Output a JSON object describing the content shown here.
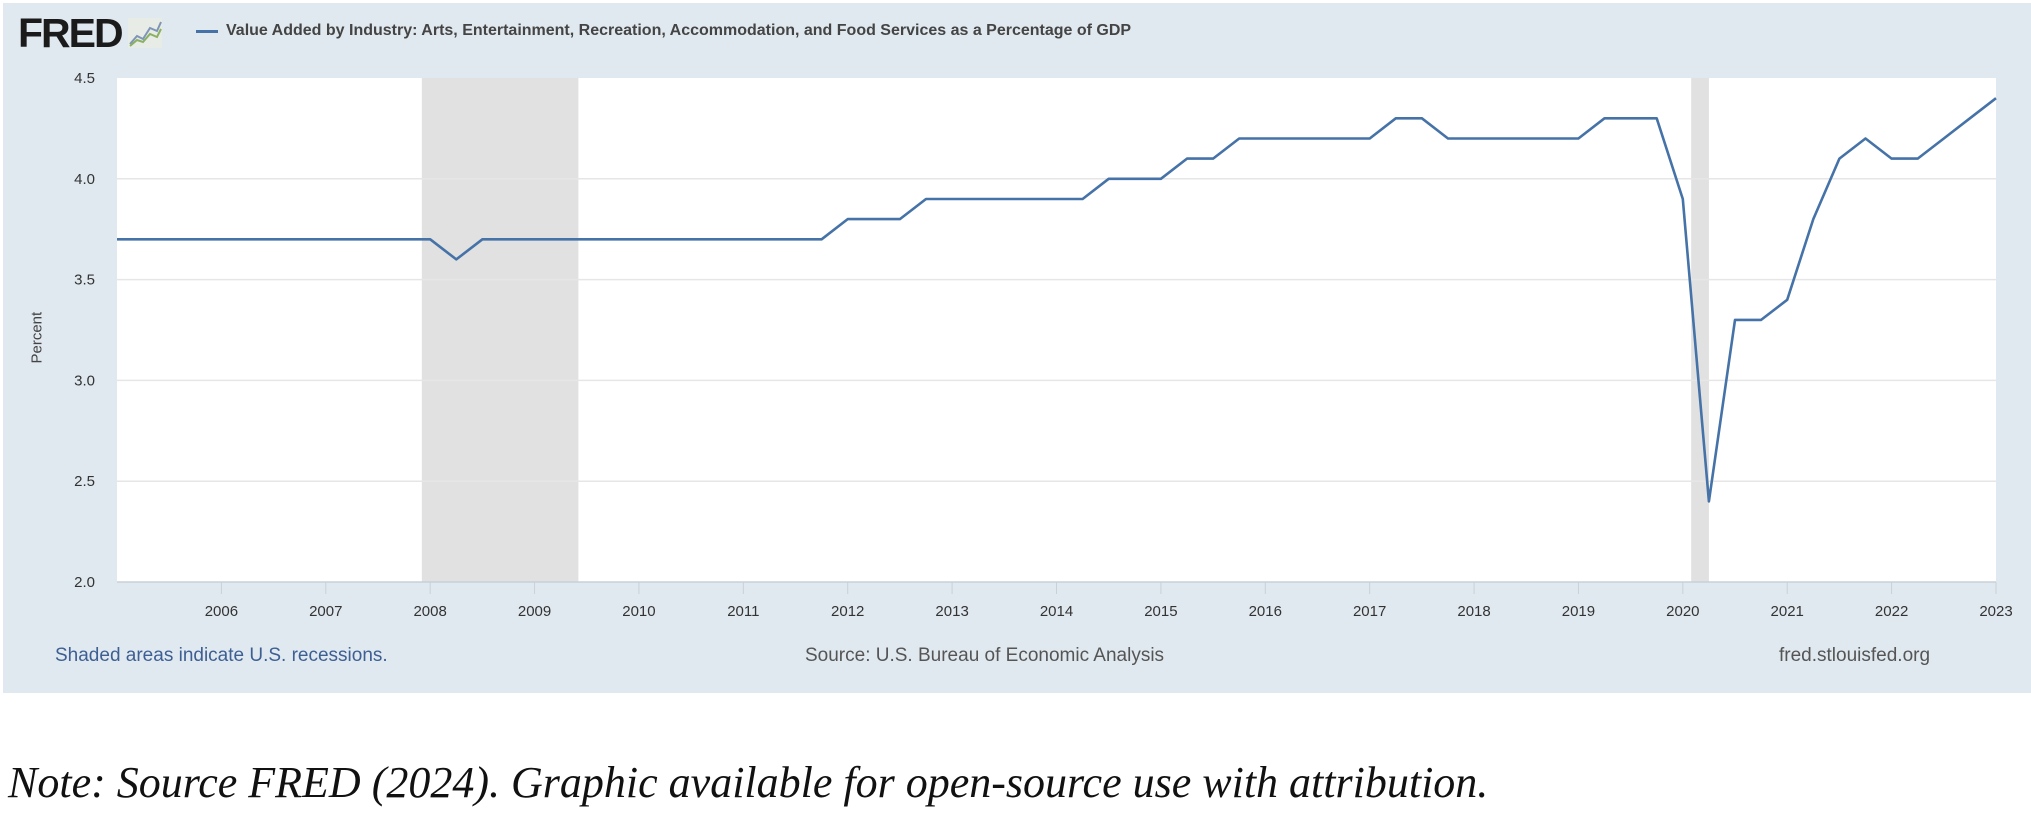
{
  "header": {
    "logo_text": "FRED",
    "logo_icon": "line-chart-icon",
    "series_title": "Value Added by Industry: Arts, Entertainment, Recreation, Accommodation, and Food Services as a Percentage of GDP"
  },
  "footer": {
    "recession_note": "Shaded areas indicate U.S. recessions.",
    "source": "Source: U.S. Bureau of Economic Analysis",
    "site": "fred.stlouisfed.org"
  },
  "caption": "Note: Source FRED (2024). Graphic available for open-source use with attribution.",
  "colors": {
    "line": "#4572a7",
    "panel_bg": "#e1e9f0",
    "recession": "#e1e1e1",
    "grid": "#e6e6e6"
  },
  "chart_data": {
    "type": "line",
    "title": "Value Added by Industry: Arts, Entertainment, Recreation, Accommodation, and Food Services as a Percentage of GDP",
    "xlabel": "",
    "ylabel": "Percent",
    "frequency": "quarterly",
    "xlim": [
      2005.0,
      2023.0
    ],
    "ylim": [
      2.0,
      4.5
    ],
    "y_ticks": [
      2.0,
      2.5,
      3.0,
      3.5,
      4.0,
      4.5
    ],
    "y_tick_labels": [
      "2.0",
      "2.5",
      "3.0",
      "3.5",
      "4.0",
      "4.5"
    ],
    "x_ticks": [
      2006,
      2007,
      2008,
      2009,
      2010,
      2011,
      2012,
      2013,
      2014,
      2015,
      2016,
      2017,
      2018,
      2019,
      2020,
      2021,
      2022,
      2023
    ],
    "x_tick_labels": [
      "2006",
      "2007",
      "2008",
      "2009",
      "2010",
      "2011",
      "2012",
      "2013",
      "2014",
      "2015",
      "2016",
      "2017",
      "2018",
      "2019",
      "2020",
      "2021",
      "2022",
      "2023"
    ],
    "grid": true,
    "legend": "top-left",
    "recessions": [
      {
        "start": 2007.92,
        "end": 2009.42
      },
      {
        "start": 2020.08,
        "end": 2020.25
      }
    ],
    "series": [
      {
        "name": "Value Added by Industry: Arts, Entertainment, Recreation, Accommodation, and Food Services as a Percentage of GDP",
        "x": [
          2005.0,
          2005.25,
          2005.5,
          2005.75,
          2006.0,
          2006.25,
          2006.5,
          2006.75,
          2007.0,
          2007.25,
          2007.5,
          2007.75,
          2008.0,
          2008.25,
          2008.5,
          2008.75,
          2009.0,
          2009.25,
          2009.5,
          2009.75,
          2010.0,
          2010.25,
          2010.5,
          2010.75,
          2011.0,
          2011.25,
          2011.5,
          2011.75,
          2012.0,
          2012.25,
          2012.5,
          2012.75,
          2013.0,
          2013.25,
          2013.5,
          2013.75,
          2014.0,
          2014.25,
          2014.5,
          2014.75,
          2015.0,
          2015.25,
          2015.5,
          2015.75,
          2016.0,
          2016.25,
          2016.5,
          2016.75,
          2017.0,
          2017.25,
          2017.5,
          2017.75,
          2018.0,
          2018.25,
          2018.5,
          2018.75,
          2019.0,
          2019.25,
          2019.5,
          2019.75,
          2020.0,
          2020.25,
          2020.5,
          2020.75,
          2021.0,
          2021.25,
          2021.5,
          2021.75,
          2022.0,
          2022.25,
          2022.5,
          2022.75,
          2023.0
        ],
        "values": [
          3.7,
          3.7,
          3.7,
          3.7,
          3.7,
          3.7,
          3.7,
          3.7,
          3.7,
          3.7,
          3.7,
          3.7,
          3.7,
          3.6,
          3.7,
          3.7,
          3.7,
          3.7,
          3.7,
          3.7,
          3.7,
          3.7,
          3.7,
          3.7,
          3.7,
          3.7,
          3.7,
          3.7,
          3.8,
          3.8,
          3.8,
          3.9,
          3.9,
          3.9,
          3.9,
          3.9,
          3.9,
          3.9,
          4.0,
          4.0,
          4.0,
          4.1,
          4.1,
          4.2,
          4.2,
          4.2,
          4.2,
          4.2,
          4.2,
          4.3,
          4.3,
          4.2,
          4.2,
          4.2,
          4.2,
          4.2,
          4.2,
          4.3,
          4.3,
          4.3,
          3.9,
          2.4,
          3.3,
          3.3,
          3.4,
          3.8,
          4.1,
          4.2,
          4.1,
          4.1,
          4.2,
          4.3,
          4.4
        ]
      }
    ]
  }
}
